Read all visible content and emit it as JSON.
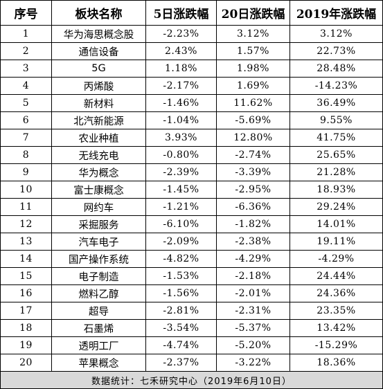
{
  "table": {
    "headers": [
      "序号",
      "板块名称",
      "5日涨跌幅",
      "20日涨跌幅",
      "2019年涨跌幅"
    ],
    "rows": [
      [
        "1",
        "华为海思概念股",
        "-2.23%",
        "3.12%",
        "3.12%"
      ],
      [
        "2",
        "通信设备",
        "2.43%",
        "1.57%",
        "22.73%"
      ],
      [
        "3",
        "5G",
        "1.18%",
        "1.98%",
        "28.48%"
      ],
      [
        "4",
        "丙烯酸",
        "-2.17%",
        "1.69%",
        "-14.23%"
      ],
      [
        "5",
        "新材料",
        "-1.46%",
        "11.62%",
        "36.49%"
      ],
      [
        "6",
        "北汽新能源",
        "-1.04%",
        "-5.69%",
        "9.55%"
      ],
      [
        "7",
        "农业种植",
        "3.93%",
        "12.80%",
        "41.75%"
      ],
      [
        "8",
        "无线充电",
        "-0.80%",
        "-2.74%",
        "25.65%"
      ],
      [
        "9",
        "华为概念",
        "-2.39%",
        "-3.39%",
        "21.28%"
      ],
      [
        "10",
        "富士康概念",
        "-1.45%",
        "-2.95%",
        "18.93%"
      ],
      [
        "11",
        "网约车",
        "-1.21%",
        "-6.36%",
        "29.24%"
      ],
      [
        "12",
        "采掘服务",
        "-6.10%",
        "-1.82%",
        "14.01%"
      ],
      [
        "13",
        "汽车电子",
        "-2.09%",
        "-2.38%",
        "19.11%"
      ],
      [
        "14",
        "国产操作系统",
        "-4.82%",
        "-4.29%",
        "-4.29%"
      ],
      [
        "15",
        "电子制造",
        "-1.53%",
        "-2.18%",
        "24.44%"
      ],
      [
        "16",
        "燃料乙醇",
        "-1.56%",
        "-2.01%",
        "24.36%"
      ],
      [
        "17",
        "超导",
        "-2.81%",
        "-2.31%",
        "23.35%"
      ],
      [
        "18",
        "石墨烯",
        "-3.54%",
        "-5.37%",
        "13.42%"
      ],
      [
        "19",
        "透明工厂",
        "-4.74%",
        "-5.20%",
        "-15.29%"
      ],
      [
        "20",
        "苹果概念",
        "-2.37%",
        "-3.22%",
        "18.36%"
      ]
    ],
    "footer": "数据统计：七禾研究中心（2019年6月10日）"
  }
}
